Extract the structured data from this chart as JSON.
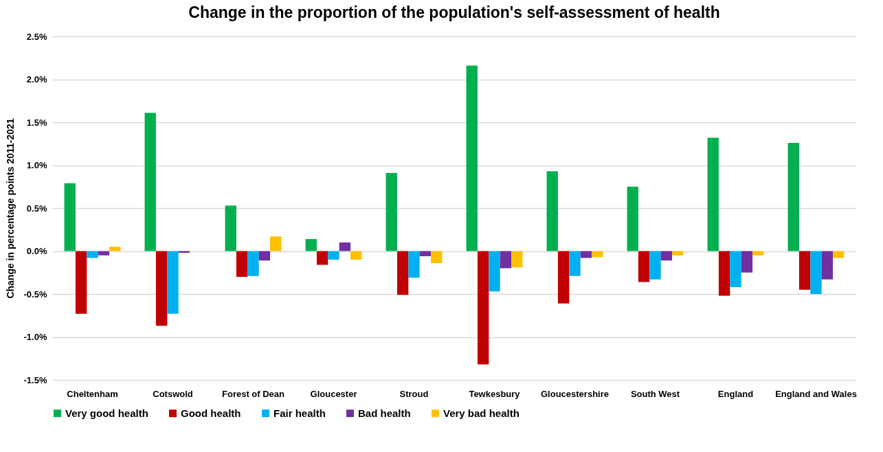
{
  "chart_data": {
    "type": "bar",
    "title": "Change in the proportion of the population's self-assessment of health",
    "ylabel": "Change in percentage points 2011-2021",
    "categories": [
      "Cheltenham",
      "Cotswold",
      "Forest of Dean",
      "Gloucester",
      "Stroud",
      "Tewkesbury",
      "Gloucestershire",
      "South West",
      "England",
      "England and Wales"
    ],
    "series": [
      {
        "name": "Very good health",
        "color": "#00b050",
        "values": [
          0.79,
          1.61,
          0.53,
          0.14,
          0.91,
          2.16,
          0.93,
          0.75,
          1.32,
          1.26
        ]
      },
      {
        "name": "Good health",
        "color": "#c00000",
        "values": [
          -0.73,
          -0.87,
          -0.3,
          -0.16,
          -0.51,
          -1.32,
          -0.61,
          -0.36,
          -0.52,
          -0.45
        ]
      },
      {
        "name": "Fair health",
        "color": "#00b0f0",
        "values": [
          -0.08,
          -0.73,
          -0.29,
          -0.1,
          -0.31,
          -0.47,
          -0.29,
          -0.33,
          -0.42,
          -0.5
        ]
      },
      {
        "name": "Bad health",
        "color": "#7030a0",
        "values": [
          -0.05,
          -0.02,
          -0.11,
          0.1,
          -0.06,
          -0.2,
          -0.08,
          -0.11,
          -0.25,
          -0.33
        ]
      },
      {
        "name": "Very bad health",
        "color": "#ffc000",
        "values": [
          0.05,
          0,
          0.17,
          -0.1,
          -0.14,
          -0.19,
          -0.07,
          -0.05,
          -0.05,
          -0.08
        ]
      }
    ],
    "ylim": [
      -1.5,
      2.5
    ],
    "yticks": [
      {
        "value": -1.5,
        "label": "-1.5%"
      },
      {
        "value": -1,
        "label": "-1.0%"
      },
      {
        "value": -0.5,
        "label": "-0.5%"
      },
      {
        "value": 0,
        "label": "0.0%"
      },
      {
        "value": 0.5,
        "label": "0.5%"
      },
      {
        "value": 1,
        "label": "1.0%"
      },
      {
        "value": 1.5,
        "label": "1.5%"
      },
      {
        "value": 2,
        "label": "2.0%"
      },
      {
        "value": 2.5,
        "label": "2.5%"
      }
    ],
    "grid": "y",
    "legend": "bottom"
  }
}
